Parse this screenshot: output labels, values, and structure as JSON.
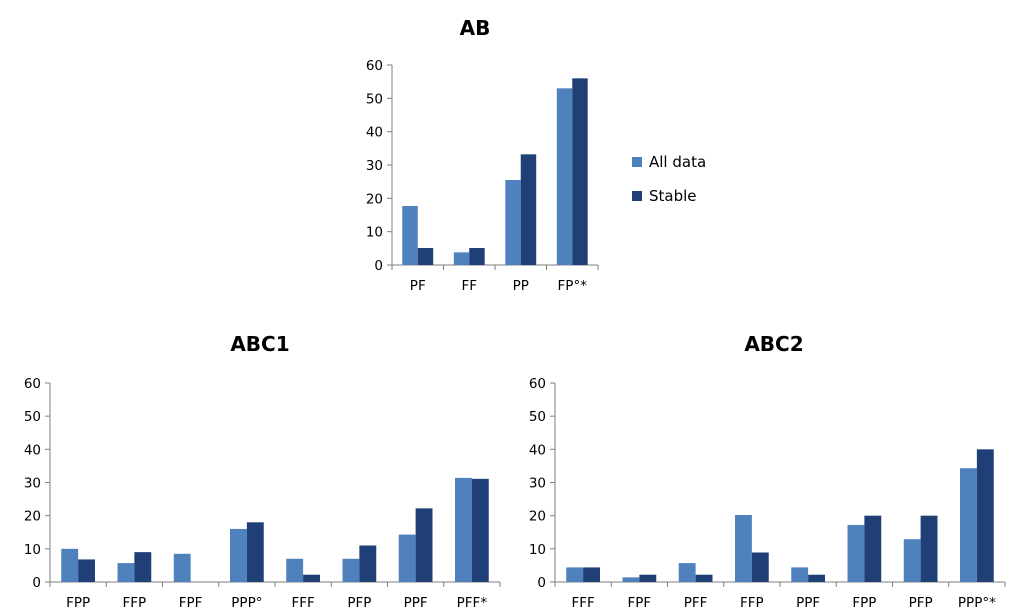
{
  "colors": {
    "all_data": "#4f81bd",
    "stable": "#1f3f76"
  },
  "legend": {
    "items": [
      "All data",
      "Stable"
    ]
  },
  "chart_data": [
    {
      "id": "ab",
      "type": "bar",
      "title": "AB",
      "ylim": [
        0,
        60
      ],
      "yticks": [
        0,
        10,
        20,
        30,
        40,
        50,
        60
      ],
      "categories": [
        "PF",
        "FF",
        "PP",
        "FP°*"
      ],
      "series": [
        {
          "name": "All data",
          "values": [
            17.7,
            3.8,
            25.5,
            53
          ]
        },
        {
          "name": "Stable",
          "values": [
            5.1,
            5.1,
            33.2,
            56
          ]
        }
      ],
      "legend_position": "right"
    },
    {
      "id": "abc1",
      "type": "bar",
      "title": "ABC1",
      "ylim": [
        0,
        60
      ],
      "yticks": [
        0,
        10,
        20,
        30,
        40,
        50,
        60
      ],
      "categories": [
        "FPP",
        "FFP",
        "FPF",
        "PPP°",
        "FFF",
        "PFP",
        "PPF",
        "PFF*"
      ],
      "series": [
        {
          "name": "All data",
          "values": [
            10,
            5.7,
            8.5,
            16,
            7,
            7,
            14.3,
            31.4
          ]
        },
        {
          "name": "Stable",
          "values": [
            6.8,
            9,
            0,
            18,
            2.2,
            11,
            22.2,
            31.1
          ]
        }
      ]
    },
    {
      "id": "abc2",
      "type": "bar",
      "title": "ABC2",
      "ylim": [
        0,
        60
      ],
      "yticks": [
        0,
        10,
        20,
        30,
        40,
        50,
        60
      ],
      "categories": [
        "FFF",
        "FPF",
        "PFF",
        "FFP",
        "PPF",
        "FPP",
        "PFP",
        "PPP°*"
      ],
      "series": [
        {
          "name": "All data",
          "values": [
            4.4,
            1.4,
            5.7,
            20.2,
            4.4,
            17.2,
            12.9,
            34.3
          ]
        },
        {
          "name": "Stable",
          "values": [
            4.4,
            2.2,
            2.2,
            8.9,
            2.2,
            20,
            20,
            40
          ]
        }
      ]
    }
  ]
}
